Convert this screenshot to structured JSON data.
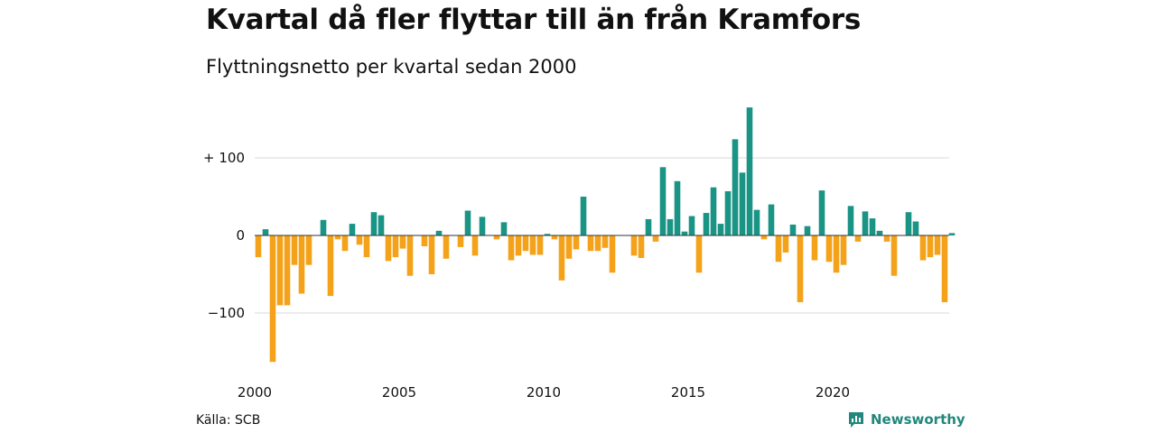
{
  "title": "Kvartal då fler flyttar till än från Kramfors",
  "subtitle": "Flyttningsnetto per kvartal sedan 2000",
  "source": "Källa: SCB",
  "brand": {
    "name": "Newsworthy",
    "icon": "newsworthy-logo-icon"
  },
  "colors": {
    "positive": "#1a9485",
    "negative": "#f4a21a",
    "grid": "#d9d9d9",
    "baseline": "#333333",
    "brand": "#22877c"
  },
  "chart_data": {
    "type": "bar",
    "title": "Kvartal då fler flyttar till än från Kramfors",
    "subtitle": "Flyttningsnetto per kvartal sedan 2000",
    "ylim": [
      -165,
      170
    ],
    "y_ticks": [
      {
        "value": 100,
        "label": "+ 100"
      },
      {
        "value": 0,
        "label": "0"
      },
      {
        "value": -100,
        "label": "−100"
      }
    ],
    "x_ticks": [
      {
        "value": 2000,
        "label": "2000"
      },
      {
        "value": 2005,
        "label": "2005"
      },
      {
        "value": 2010,
        "label": "2010"
      },
      {
        "value": 2015,
        "label": "2015"
      },
      {
        "value": 2020,
        "label": "2020"
      }
    ],
    "x_start": 2000,
    "period": "quarter",
    "grid": true,
    "values": [
      -28,
      8,
      -163,
      -90,
      -90,
      -38,
      -75,
      -38,
      0,
      20,
      -78,
      -5,
      -20,
      15,
      -12,
      -28,
      30,
      26,
      -33,
      -28,
      -17,
      -52,
      0,
      -14,
      -50,
      6,
      -30,
      0,
      -15,
      32,
      -26,
      24,
      0,
      -5,
      17,
      -32,
      -26,
      -20,
      -25,
      -25,
      2,
      -5,
      -58,
      -30,
      -18,
      50,
      -20,
      -20,
      -16,
      -48,
      0,
      0,
      -26,
      -29,
      21,
      -8,
      88,
      21,
      70,
      5,
      25,
      -48,
      29,
      62,
      15,
      57,
      124,
      81,
      165,
      33,
      -5,
      40,
      -34,
      -22,
      14,
      -86,
      12,
      -32,
      58,
      -34,
      -48,
      -38,
      38,
      -8,
      31,
      22,
      6,
      -8,
      -52,
      0,
      30,
      18,
      -32,
      -28,
      -25,
      -86,
      3
    ]
  }
}
